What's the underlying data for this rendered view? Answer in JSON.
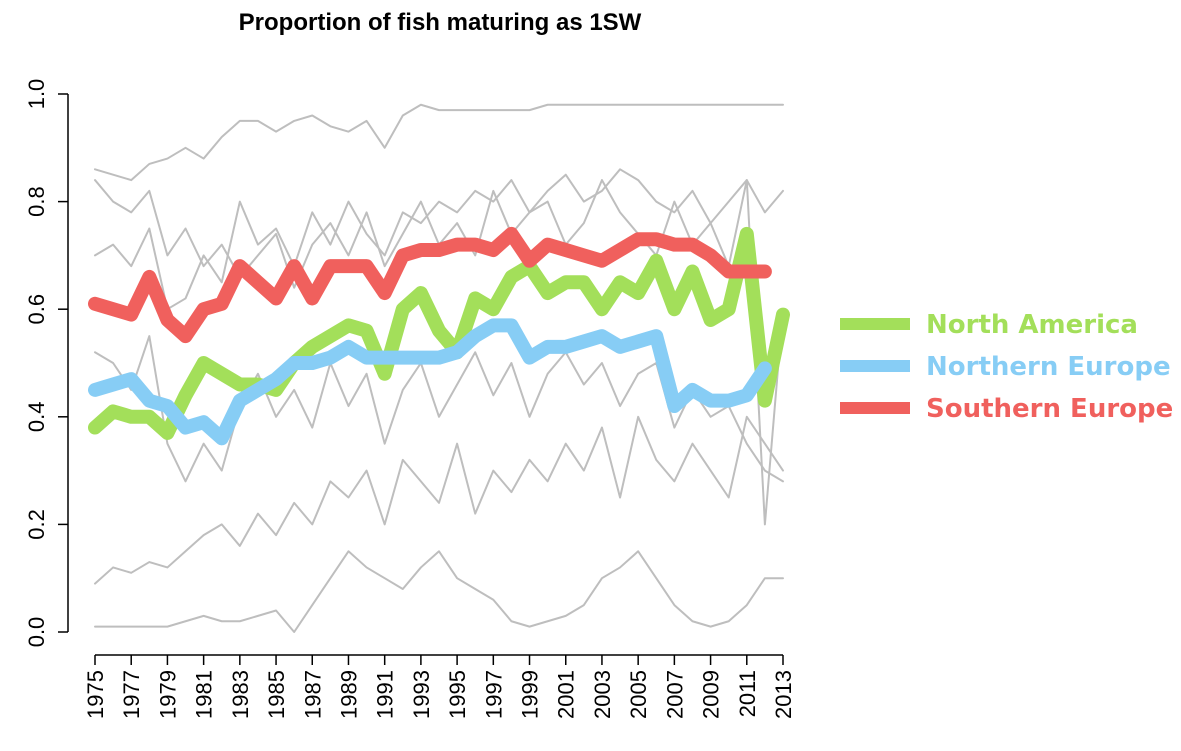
{
  "chart_data": {
    "type": "line",
    "title": "Proportion of fish maturing as 1SW",
    "x": [
      1975,
      1976,
      1977,
      1978,
      1979,
      1980,
      1981,
      1982,
      1983,
      1984,
      1985,
      1986,
      1987,
      1988,
      1989,
      1990,
      1991,
      1992,
      1993,
      1994,
      1995,
      1996,
      1997,
      1998,
      1999,
      2000,
      2001,
      2002,
      2003,
      2004,
      2005,
      2006,
      2007,
      2008,
      2009,
      2010,
      2011,
      2012,
      2013
    ],
    "xlim": [
      1975,
      2013
    ],
    "xticks": [
      1975,
      1977,
      1979,
      1981,
      1983,
      1985,
      1987,
      1989,
      1991,
      1993,
      1995,
      1997,
      1999,
      2001,
      2003,
      2005,
      2007,
      2009,
      2011,
      2013
    ],
    "ylim": [
      0,
      1
    ],
    "yticks": [
      {
        "value": 0,
        "label": "0.0"
      },
      0.2,
      0.4,
      0.6,
      0.8,
      {
        "value": 1,
        "label": "1.0"
      }
    ],
    "background_series": [
      {
        "color": "#bebebe",
        "values": [
          0.86,
          0.85,
          0.84,
          0.87,
          0.88,
          0.9,
          0.88,
          0.92,
          0.95,
          0.95,
          0.93,
          0.95,
          0.96,
          0.94,
          0.93,
          0.95,
          0.9,
          0.96,
          0.98,
          0.97,
          0.97,
          0.97,
          0.97,
          0.97,
          0.97,
          0.98,
          0.98,
          0.98,
          0.98,
          0.98,
          0.98,
          0.98,
          0.98,
          0.98,
          0.98,
          0.98,
          0.98,
          0.98,
          0.98
        ]
      },
      {
        "color": "#bebebe",
        "values": [
          0.01,
          0.01,
          0.01,
          0.01,
          0.01,
          0.02,
          0.03,
          0.02,
          0.02,
          0.03,
          0.04,
          0.0,
          0.05,
          0.1,
          0.15,
          0.12,
          0.1,
          0.08,
          0.12,
          0.15,
          0.1,
          0.08,
          0.06,
          0.02,
          0.01,
          0.02,
          0.03,
          0.05,
          0.1,
          0.12,
          0.15,
          0.1,
          0.05,
          0.02,
          0.01,
          0.02,
          0.05,
          0.1,
          0.1
        ]
      },
      {
        "color": "#bebebe",
        "values": [
          0.09,
          0.12,
          0.11,
          0.13,
          0.12,
          0.15,
          0.18,
          0.2,
          0.16,
          0.22,
          0.18,
          0.24,
          0.2,
          0.28,
          0.25,
          0.3,
          0.2,
          0.32,
          0.28,
          0.24,
          0.35,
          0.22,
          0.3,
          0.26,
          0.32,
          0.28,
          0.35,
          0.3,
          0.38,
          0.25,
          0.4,
          0.32,
          0.28,
          0.35,
          0.3,
          0.25,
          0.4,
          0.35,
          0.3
        ]
      },
      {
        "color": "#bebebe",
        "values": [
          0.7,
          0.72,
          0.68,
          0.75,
          0.6,
          0.62,
          0.7,
          0.65,
          0.8,
          0.72,
          0.75,
          0.68,
          0.78,
          0.72,
          0.8,
          0.74,
          0.7,
          0.78,
          0.76,
          0.8,
          0.78,
          0.82,
          0.8,
          0.84,
          0.78,
          0.82,
          0.85,
          0.8,
          0.82,
          0.86,
          0.84,
          0.8,
          0.78,
          0.82,
          0.76,
          0.8,
          0.84,
          0.78,
          0.82
        ]
      },
      {
        "color": "#bebebe",
        "values": [
          0.52,
          0.5,
          0.45,
          0.55,
          0.35,
          0.28,
          0.35,
          0.3,
          0.42,
          0.48,
          0.4,
          0.45,
          0.38,
          0.5,
          0.42,
          0.48,
          0.35,
          0.45,
          0.5,
          0.4,
          0.46,
          0.52,
          0.44,
          0.5,
          0.4,
          0.48,
          0.52,
          0.46,
          0.5,
          0.42,
          0.48,
          0.5,
          0.38,
          0.45,
          0.4,
          0.42,
          0.35,
          0.3,
          0.28
        ]
      },
      {
        "color": "#bebebe",
        "values": [
          0.84,
          0.8,
          0.78,
          0.82,
          0.7,
          0.75,
          0.68,
          0.72,
          0.66,
          0.7,
          0.74,
          0.64,
          0.72,
          0.76,
          0.7,
          0.78,
          0.68,
          0.74,
          0.8,
          0.72,
          0.76,
          0.7,
          0.82,
          0.74,
          0.78,
          0.8,
          0.72,
          0.76,
          0.84,
          0.78,
          0.74,
          0.7,
          0.8,
          0.72,
          0.76,
          0.68,
          0.84,
          0.2,
          0.6
        ]
      }
    ],
    "series": [
      {
        "name": "North America",
        "color": "#a3df5a",
        "values": [
          0.38,
          0.41,
          0.4,
          0.4,
          0.37,
          0.44,
          0.5,
          0.48,
          0.46,
          0.46,
          0.45,
          0.5,
          0.53,
          0.55,
          0.57,
          0.56,
          0.48,
          0.6,
          0.63,
          0.56,
          0.52,
          0.62,
          0.6,
          0.66,
          0.68,
          0.63,
          0.65,
          0.65,
          0.6,
          0.65,
          0.63,
          0.69,
          0.6,
          0.67,
          0.58,
          0.6,
          0.74,
          0.43,
          0.59
        ]
      },
      {
        "name": "Northern Europe",
        "color": "#87cdf5",
        "values": [
          0.45,
          0.46,
          0.47,
          0.43,
          0.42,
          0.38,
          0.39,
          0.36,
          0.43,
          0.45,
          0.47,
          0.5,
          0.5,
          0.51,
          0.53,
          0.51,
          0.51,
          0.51,
          0.51,
          0.51,
          0.52,
          0.55,
          0.57,
          0.57,
          0.51,
          0.53,
          0.53,
          0.54,
          0.55,
          0.53,
          0.54,
          0.55,
          0.42,
          0.45,
          0.43,
          0.43,
          0.44,
          0.49,
          null
        ]
      },
      {
        "name": "Southern Europe",
        "color": "#f0605d",
        "values": [
          0.61,
          0.6,
          0.59,
          0.66,
          0.58,
          0.55,
          0.6,
          0.61,
          0.68,
          0.65,
          0.62,
          0.68,
          0.62,
          0.68,
          0.68,
          0.68,
          0.63,
          0.7,
          0.71,
          0.71,
          0.72,
          0.72,
          0.71,
          0.74,
          0.69,
          0.72,
          0.71,
          0.7,
          0.69,
          0.71,
          0.73,
          0.73,
          0.72,
          0.72,
          0.7,
          0.67,
          0.67,
          0.67,
          null
        ]
      }
    ]
  }
}
